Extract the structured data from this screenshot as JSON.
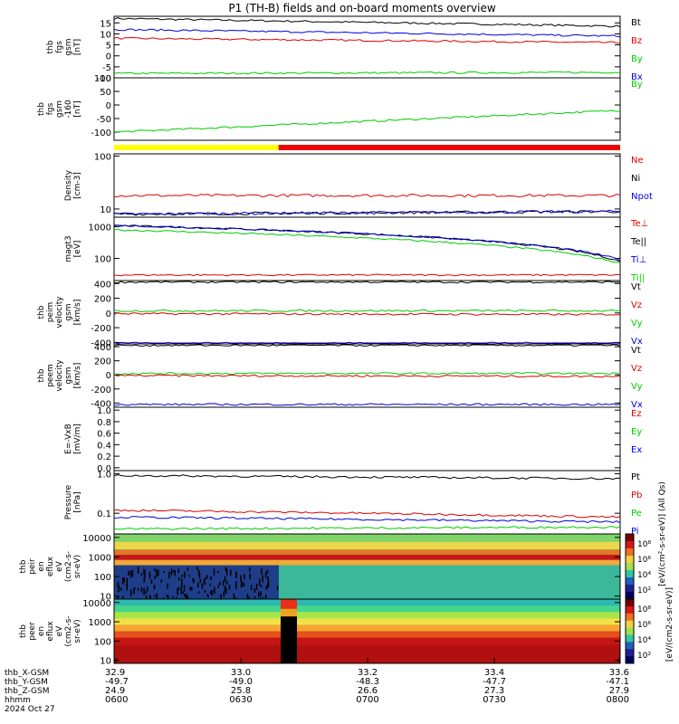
{
  "chart_data": {
    "type": "line",
    "title": "P1 (TH-B) fields and on-board moments overview",
    "date": "2024 Oct 27",
    "time_ticks": [
      "0600",
      "0630",
      "0700",
      "0730",
      "0800"
    ],
    "ephemeris": [
      {
        "label": "thb_X-GSM",
        "values": [
          "32.9",
          "33.0",
          "33.2",
          "33.4",
          "33.6"
        ]
      },
      {
        "label": "thb_Y-GSM",
        "values": [
          "-49.7",
          "-49.0",
          "-48.3",
          "-47.7",
          "-47.1"
        ]
      },
      {
        "label": "thb_Z-GSM",
        "values": [
          "24.9",
          "25.8",
          "26.6",
          "27.3",
          "27.9"
        ]
      },
      {
        "label": "hhmm",
        "values": [
          "0600",
          "0630",
          "0700",
          "0730",
          "0800"
        ]
      }
    ],
    "colors": {
      "black": "#000000",
      "red": "#dd0000",
      "green": "#00cc00",
      "blue": "#0000dd",
      "yellow": "#ffff00"
    },
    "panels": [
      {
        "ylabel": [
          "thb",
          "fgs",
          "gsm",
          "[nT]"
        ],
        "scale": "linear",
        "ylim": [
          -10,
          18
        ],
        "ticks": [
          "15",
          "10",
          "5",
          "0",
          "-5",
          "-10"
        ],
        "tick_values": [
          15,
          10,
          5,
          0,
          -5,
          -10
        ],
        "series": [
          {
            "name": "Bt",
            "color": "#000000",
            "start": 17,
            "end": 13.5
          },
          {
            "name": "Bz",
            "color": "#dd0000",
            "start": 8,
            "end": 6
          },
          {
            "name": "By",
            "color": "#00cc00",
            "start": -8,
            "end": -7.5
          },
          {
            "name": "Bx",
            "color": "#0000dd",
            "start": 12,
            "end": 9
          }
        ]
      },
      {
        "ylabel": [
          "thb",
          "fgs",
          "gsm",
          "-160",
          "[nT]"
        ],
        "scale": "linear",
        "ylim": [
          -130,
          100
        ],
        "ticks": [
          "100",
          "50",
          "0",
          "-50",
          "-100"
        ],
        "tick_values": [
          100,
          50,
          0,
          -50,
          -100
        ],
        "series": [
          {
            "name": "By",
            "color": "#00cc00",
            "start": -100,
            "end": -20
          }
        ]
      },
      {
        "ylabel": [
          "Density",
          "[cm-3]"
        ],
        "scale": "log",
        "ylim": [
          7,
          110
        ],
        "ticks": [
          "100",
          "10"
        ],
        "tick_values": [
          100,
          10
        ],
        "series": [
          {
            "name": "Ne",
            "color": "#dd0000",
            "start": 18,
            "end": 18
          },
          {
            "name": "Ni",
            "color": "#000000",
            "start": 8,
            "end": 9
          },
          {
            "name": "Npot",
            "color": "#0000dd",
            "start": 8,
            "end": 9
          }
        ]
      },
      {
        "ylabel": [
          "magt3",
          "[eV]"
        ],
        "scale": "log",
        "ylim": [
          20,
          2000
        ],
        "ticks": [
          "1000",
          "100"
        ],
        "tick_values": [
          1000,
          100
        ],
        "series": [
          {
            "name": "Te⊥",
            "color": "#dd0000",
            "start": 30,
            "end": 30
          },
          {
            "name": "Te||",
            "color": "#000000",
            "start": 1100,
            "end": 80
          },
          {
            "name": "Ti⊥",
            "color": "#0000dd",
            "start": 1100,
            "end": 90
          },
          {
            "name": "Ti||",
            "color": "#00cc00",
            "start": 800,
            "end": 70
          }
        ]
      },
      {
        "ylabel": [
          "thb",
          "peim",
          "velocity",
          "gsm",
          "[km/s]"
        ],
        "scale": "linear",
        "ylim": [
          -420,
          440
        ],
        "ticks": [
          "400",
          "200",
          "0",
          "-200",
          "-400"
        ],
        "tick_values": [
          400,
          200,
          0,
          -200,
          -400
        ],
        "series": [
          {
            "name": "Vt",
            "color": "#000000",
            "start": 420,
            "end": 420
          },
          {
            "name": "Vz",
            "color": "#dd0000",
            "start": -10,
            "end": -20
          },
          {
            "name": "Vy",
            "color": "#00cc00",
            "start": 30,
            "end": 30
          },
          {
            "name": "Vx",
            "color": "#0000dd",
            "start": -410,
            "end": -410
          }
        ]
      },
      {
        "ylabel": [
          "thb",
          "peem",
          "velocity",
          "gsm",
          "[km/s]"
        ],
        "scale": "linear",
        "ylim": [
          -460,
          440
        ],
        "ticks": [
          "400",
          "200",
          "0",
          "-200",
          "-400"
        ],
        "tick_values": [
          400,
          200,
          0,
          -200,
          -400
        ],
        "series": [
          {
            "name": "Vt",
            "color": "#000000",
            "start": 420,
            "end": 420
          },
          {
            "name": "Vz",
            "color": "#dd0000",
            "start": -10,
            "end": -20
          },
          {
            "name": "Vy",
            "color": "#00cc00",
            "start": 20,
            "end": 20
          },
          {
            "name": "Vx",
            "color": "#0000dd",
            "start": -420,
            "end": -420
          }
        ]
      },
      {
        "ylabel": [
          "E=-VxB",
          "[mV/m]"
        ],
        "scale": "linear",
        "ylim": [
          -0.05,
          1.05
        ],
        "ticks": [
          "1.0",
          "0.8",
          "0.6",
          "0.4",
          "0.2",
          "0.0"
        ],
        "tick_values": [
          1.0,
          0.8,
          0.6,
          0.4,
          0.2,
          0.0
        ],
        "series": [
          {
            "name": "Ez",
            "color": "#dd0000"
          },
          {
            "name": "Ey",
            "color": "#00cc00"
          },
          {
            "name": "Ex",
            "color": "#0000dd"
          }
        ]
      },
      {
        "ylabel": [
          "Pressure",
          "[nPa]"
        ],
        "scale": "log",
        "ylim": [
          0.03,
          1.2
        ],
        "ticks": [
          "1.0",
          "0.1"
        ],
        "tick_values": [
          1.0,
          0.1
        ],
        "series": [
          {
            "name": "Pt",
            "color": "#000000",
            "start": 0.9,
            "end": 0.75
          },
          {
            "name": "Pb",
            "color": "#dd0000",
            "start": 0.12,
            "end": 0.08
          },
          {
            "name": "Pe",
            "color": "#00cc00",
            "start": 0.04,
            "end": 0.045
          },
          {
            "name": "Pi",
            "color": "#0000dd",
            "start": 0.08,
            "end": 0.06
          }
        ]
      },
      {
        "ylabel": [
          "thb",
          "peir",
          "en",
          "eflux",
          "eV",
          "(cm2-s-",
          "sr-eV)"
        ],
        "type": "heatmap",
        "scale": "log",
        "ylim": [
          7,
          15000
        ],
        "ticks": [
          "10000",
          "1000",
          "100",
          "10"
        ],
        "tick_values": [
          10000,
          1000,
          100,
          10
        ]
      },
      {
        "ylabel": [
          "thb",
          "peer",
          "en",
          "eflux",
          "eV",
          "(cm2-s-",
          "sr-eV)"
        ],
        "type": "heatmap",
        "scale": "log",
        "ylim": [
          7,
          15000
        ],
        "ticks": [
          "10000",
          "1000",
          "100",
          "10"
        ],
        "tick_values": [
          10000,
          1000,
          100,
          10
        ]
      }
    ],
    "colorbar": {
      "ticks": [
        "10⁸",
        "10⁶",
        "10⁴",
        "10²"
      ],
      "label": "[eV/(cm2-s-sr-eV)]",
      "label_top": "[eV/(cm²-s-sr-eV)] (All Qs)"
    },
    "mode_bar": {
      "yellow_until": 0.325
    }
  }
}
